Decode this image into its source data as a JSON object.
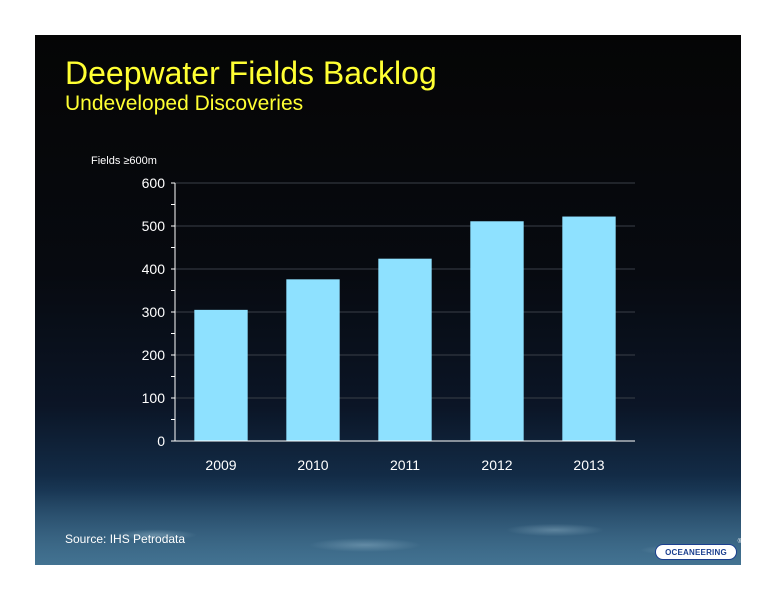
{
  "slide": {
    "title": "Deepwater Fields Backlog",
    "subtitle": "Undeveloped Discoveries",
    "source": "Source:  IHS Petrodata",
    "logo_text": "OCEANEERING",
    "logo_mark": "®"
  },
  "chart_data": {
    "type": "bar",
    "title": "",
    "xlabel": "",
    "ylabel": "Fields ≥600m",
    "categories": [
      "2009",
      "2010",
      "2011",
      "2012",
      "2013"
    ],
    "values": [
      305,
      376,
      424,
      511,
      522
    ],
    "ylim": [
      0,
      600
    ],
    "yticks": [
      0,
      100,
      200,
      300,
      400,
      500,
      600
    ],
    "grid": true,
    "legend": "none",
    "colors": {
      "bar": "#8ee1ff",
      "grid": "#3a3f48",
      "text": "#ffffff"
    }
  }
}
